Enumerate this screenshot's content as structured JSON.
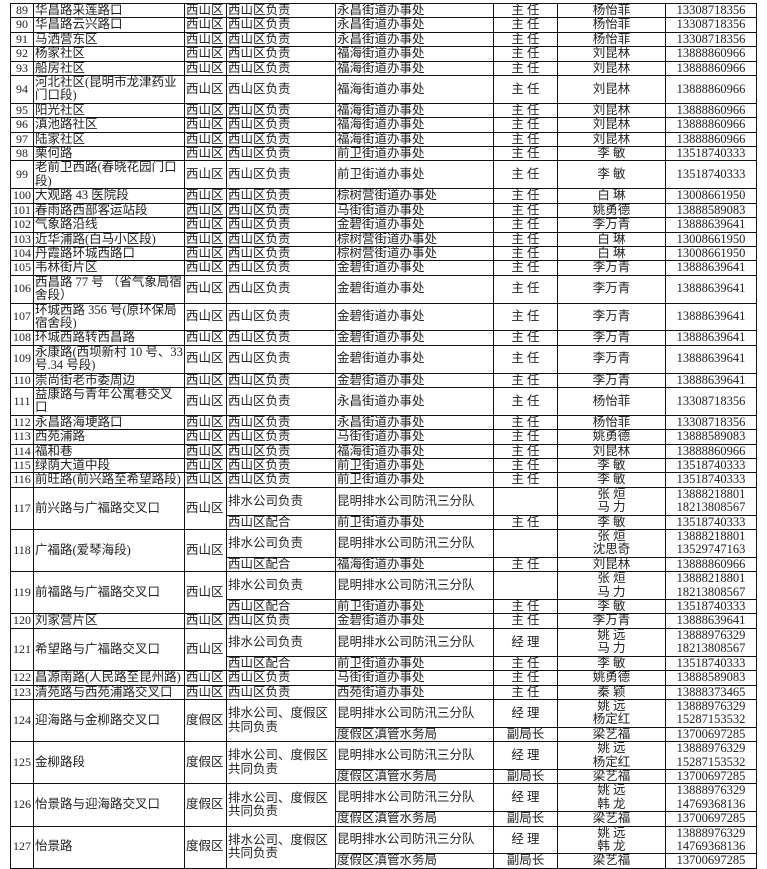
{
  "table": {
    "rows": [
      {
        "no": "89",
        "name": "华昌路采莲路口",
        "district": "西山区",
        "groups": [
          {
            "resp": "西山区负责",
            "unit": "永昌街道办事处",
            "title": "主 任",
            "people": [
              [
                "杨怡菲",
                "13308718356"
              ]
            ]
          }
        ]
      },
      {
        "no": "90",
        "name": "华昌路云兴路口",
        "district": "西山区",
        "groups": [
          {
            "resp": "西山区负责",
            "unit": "永昌街道办事处",
            "title": "主 任",
            "people": [
              [
                "杨怡菲",
                "13308718356"
              ]
            ]
          }
        ]
      },
      {
        "no": "91",
        "name": "马洒营东区",
        "district": "西山区",
        "groups": [
          {
            "resp": "西山区负责",
            "unit": "永昌街道办事处",
            "title": "主 任",
            "people": [
              [
                "杨怡菲",
                "13308718356"
              ]
            ]
          }
        ]
      },
      {
        "no": "92",
        "name": "杨家社区",
        "district": "西山区",
        "groups": [
          {
            "resp": "西山区负责",
            "unit": "福海街道办事处",
            "title": "主 任",
            "people": [
              [
                "刘昆林",
                "13888860966"
              ]
            ]
          }
        ]
      },
      {
        "no": "93",
        "name": "船房社区",
        "district": "西山区",
        "groups": [
          {
            "resp": "西山区负责",
            "unit": "福海街道办事处",
            "title": "主 任",
            "people": [
              [
                "刘昆林",
                "13888860966"
              ]
            ]
          }
        ]
      },
      {
        "no": "94",
        "name": "河北社区(昆明市龙津药业门口段)",
        "district": "西山区",
        "groups": [
          {
            "resp": "西山区负责",
            "unit": "福海街道办事处",
            "title": "主 任",
            "people": [
              [
                "刘昆林",
                "13888860966"
              ]
            ]
          }
        ]
      },
      {
        "no": "95",
        "name": "阳光社区",
        "district": "西山区",
        "groups": [
          {
            "resp": "西山区负责",
            "unit": "福海街道办事处",
            "title": "主 任",
            "people": [
              [
                "刘昆林",
                "13888860966"
              ]
            ]
          }
        ]
      },
      {
        "no": "96",
        "name": "滇池路社区",
        "district": "西山区",
        "groups": [
          {
            "resp": "西山区负责",
            "unit": "福海街道办事处",
            "title": "主 任",
            "people": [
              [
                "刘昆林",
                "13888860966"
              ]
            ]
          }
        ]
      },
      {
        "no": "97",
        "name": "陆家社区",
        "district": "西山区",
        "groups": [
          {
            "resp": "西山区负责",
            "unit": "福海街道办事处",
            "title": "主 任",
            "people": [
              [
                "刘昆林",
                "13888860966"
              ]
            ]
          }
        ]
      },
      {
        "no": "98",
        "name": "栗何路",
        "district": "西山区",
        "groups": [
          {
            "resp": "西山区负责",
            "unit": "前卫街道办事处",
            "title": "主 任",
            "people": [
              [
                "李 敏",
                "13518740333"
              ]
            ]
          }
        ]
      },
      {
        "no": "99",
        "name": "老前卫西路(春晓花园门口段)",
        "district": "西山区",
        "groups": [
          {
            "resp": "西山区负责",
            "unit": "前卫街道办事处",
            "title": "主 任",
            "people": [
              [
                "李 敏",
                "13518740333"
              ]
            ]
          }
        ]
      },
      {
        "no": "100",
        "name": "大观路 43 医院段",
        "district": "西山区",
        "groups": [
          {
            "resp": "西山区负责",
            "unit": "棕树营街道办事处",
            "title": "主 任",
            "people": [
              [
                "白 琳",
                "13008661950"
              ]
            ]
          }
        ]
      },
      {
        "no": "101",
        "name": "春雨路西部客运站段",
        "district": "西山区",
        "groups": [
          {
            "resp": "西山区负责",
            "unit": "马街街道办事处",
            "title": "主 任",
            "people": [
              [
                "姚勇德",
                "13888589083"
              ]
            ]
          }
        ]
      },
      {
        "no": "102",
        "name": "气象路沿线",
        "district": "西山区",
        "groups": [
          {
            "resp": "西山区负责",
            "unit": "金碧街道办事处",
            "title": "主 任",
            "people": [
              [
                "李万青",
                "13888639641"
              ]
            ]
          }
        ]
      },
      {
        "no": "103",
        "name": "近华浦路(白马小区段)",
        "district": "西山区",
        "groups": [
          {
            "resp": "西山区负责",
            "unit": "棕树营街道办事处",
            "title": "主 任",
            "people": [
              [
                "白 琳",
                "13008661950"
              ]
            ]
          }
        ]
      },
      {
        "no": "104",
        "name": "丹霞路环城西路口",
        "district": "西山区",
        "groups": [
          {
            "resp": "西山区负责",
            "unit": "棕树营街道办事处",
            "title": "主 任",
            "people": [
              [
                "白 琳",
                "13008661950"
              ]
            ]
          }
        ]
      },
      {
        "no": "105",
        "name": "韦林街片区",
        "district": "西山区",
        "groups": [
          {
            "resp": "西山区负责",
            "unit": "金碧街道办事处",
            "title": "主 任",
            "people": [
              [
                "李万青",
                "13888639641"
              ]
            ]
          }
        ]
      },
      {
        "no": "106",
        "name": "西昌路 77 号 （省气象局宿舍段）",
        "district": "西山区",
        "groups": [
          {
            "resp": "西山区负责",
            "unit": "金碧街道办事处",
            "title": "主 任",
            "people": [
              [
                "李万青",
                "13888639641"
              ]
            ]
          }
        ]
      },
      {
        "no": "107",
        "name": "环城西路 356 号(原环保局宿舍段)",
        "district": "西山区",
        "groups": [
          {
            "resp": "西山区负责",
            "unit": "金碧街道办事处",
            "title": "主 任",
            "people": [
              [
                "李万青",
                "13888639641"
              ]
            ]
          }
        ]
      },
      {
        "no": "108",
        "name": "环城西路转西昌路",
        "district": "西山区",
        "groups": [
          {
            "resp": "西山区负责",
            "unit": "金碧街道办事处",
            "title": "主 任",
            "people": [
              [
                "李万青",
                "13888639641"
              ]
            ]
          }
        ]
      },
      {
        "no": "109",
        "name": "永康路(西坝新村 10 号、33 号.34 号段)",
        "district": "西山区",
        "groups": [
          {
            "resp": "西山区负责",
            "unit": "金碧街道办事处",
            "title": "主 任",
            "people": [
              [
                "李万青",
                "13888639641"
              ]
            ]
          }
        ]
      },
      {
        "no": "110",
        "name": "崇尚街老市委周边",
        "district": "西山区",
        "groups": [
          {
            "resp": "西山区负责",
            "unit": "金碧街道办事处",
            "title": "主 任",
            "people": [
              [
                "李万青",
                "13888639641"
              ]
            ]
          }
        ]
      },
      {
        "no": "111",
        "name": "益康路与青年公寓巷交叉口",
        "district": "西山区",
        "groups": [
          {
            "resp": "西山区负责",
            "unit": "永昌街道办事处",
            "title": "主 任",
            "people": [
              [
                "杨怡菲",
                "13308718356"
              ]
            ]
          }
        ]
      },
      {
        "no": "112",
        "name": "永昌路海埂路口",
        "district": "西山区",
        "groups": [
          {
            "resp": "西山区负责",
            "unit": "永昌街道办事处",
            "title": "主 任",
            "people": [
              [
                "杨怡菲",
                "13308718356"
              ]
            ]
          }
        ]
      },
      {
        "no": "113",
        "name": "西苑浦路",
        "district": "西山区",
        "groups": [
          {
            "resp": "西山区负责",
            "unit": "马街街道办事处",
            "title": "主 任",
            "people": [
              [
                "姚勇德",
                "13888589083"
              ]
            ]
          }
        ]
      },
      {
        "no": "114",
        "name": "福和巷",
        "district": "西山区",
        "groups": [
          {
            "resp": "西山区负责",
            "unit": "福海街道办事处",
            "title": "主 任",
            "people": [
              [
                "刘昆林",
                "13888860966"
              ]
            ]
          }
        ]
      },
      {
        "no": "115",
        "name": "绿荫大道中段",
        "district": "西山区",
        "groups": [
          {
            "resp": "西山区负责",
            "unit": "前卫街道办事处",
            "title": "主 任",
            "people": [
              [
                "李 敏",
                "13518740333"
              ]
            ]
          }
        ]
      },
      {
        "no": "116",
        "name": "前旺路(前兴路至希望路段)",
        "district": "西山区",
        "groups": [
          {
            "resp": "西山区负责",
            "unit": "前卫街道办事处",
            "title": "主 任",
            "people": [
              [
                "李 敏",
                "13518740333"
              ]
            ]
          }
        ]
      },
      {
        "no": "117",
        "name": "前兴路与广福路交叉口",
        "district": "西山区",
        "groups": [
          {
            "resp": "排水公司负责",
            "unit": "昆明排水公司防汛三分队",
            "title": "",
            "people": [
              [
                "张 烜",
                "13888218801"
              ],
              [
                "马 力",
                "18213808567"
              ]
            ]
          },
          {
            "resp": "西山区配合",
            "unit": "前卫街道办事处",
            "title": "主 任",
            "people": [
              [
                "李 敏",
                "13518740333"
              ]
            ]
          }
        ]
      },
      {
        "no": "118",
        "name": "广福路(爱琴海段)",
        "district": "西山区",
        "groups": [
          {
            "resp": "排水公司负责",
            "unit": "昆明排水公司防汛三分队",
            "title": "",
            "people": [
              [
                "张 烜",
                "13888218801"
              ],
              [
                "沈思奇",
                "13529747163"
              ]
            ]
          },
          {
            "resp": "西山区配合",
            "unit": "福海街道办事处",
            "title": "主 任",
            "people": [
              [
                "刘昆林",
                "13888860966"
              ]
            ]
          }
        ]
      },
      {
        "no": "119",
        "name": "前福路与广福路交叉口",
        "district": "西山区",
        "groups": [
          {
            "resp": "排水公司负责",
            "unit": "昆明排水公司防汛三分队",
            "title": "",
            "people": [
              [
                "张 烜",
                "13888218801"
              ],
              [
                "马 力",
                "18213808567"
              ]
            ]
          },
          {
            "resp": "西山区配合",
            "unit": "前卫街道办事处",
            "title": "主 任",
            "people": [
              [
                "李 敏",
                "13518740333"
              ]
            ]
          }
        ]
      },
      {
        "no": "120",
        "name": "刘家营片区",
        "district": "西山区",
        "groups": [
          {
            "resp": "西山区负责",
            "unit": "金碧街道办事处",
            "title": "主 任",
            "people": [
              [
                "李万青",
                "13888639641"
              ]
            ]
          }
        ]
      },
      {
        "no": "121",
        "name": "希望路与广福路交叉口",
        "district": "西山区",
        "groups": [
          {
            "resp": "排水公司负责",
            "unit": "昆明排水公司防汛三分队",
            "title": "经 理",
            "people": [
              [
                "姚 远",
                "13888976329"
              ],
              [
                "马 力",
                "18213808567"
              ]
            ]
          },
          {
            "resp": "西山区配合",
            "unit": "前卫街道办事处",
            "title": "主 任",
            "people": [
              [
                "李 敏",
                "13518740333"
              ]
            ]
          }
        ]
      },
      {
        "no": "122",
        "name": "昌源南路(人民路至昆州路)",
        "district": "西山区",
        "groups": [
          {
            "resp": "西山区负责",
            "unit": "马街街道办事处",
            "title": "主 任",
            "people": [
              [
                "姚勇德",
                "13888589083"
              ]
            ]
          }
        ]
      },
      {
        "no": "123",
        "name": "清苑路与西苑浦路交叉口",
        "district": "西山区",
        "groups": [
          {
            "resp": "西山区负责",
            "unit": "西苑街道办事处",
            "title": "主 任",
            "people": [
              [
                "秦 颖",
                "13888373465"
              ]
            ]
          }
        ]
      },
      {
        "no": "124",
        "name": "迎海路与金柳路交叉口",
        "district": "度假区",
        "shared_resp": "排水公司、度假区共同负责",
        "groups": [
          {
            "unit": "昆明排水公司防汛三分队",
            "title": "经 理",
            "people": [
              [
                "姚 远",
                "13888976329"
              ],
              [
                "杨定红",
                "15287153532"
              ]
            ]
          },
          {
            "unit": "度假区滇管水务局",
            "title": "副局长",
            "people": [
              [
                "梁艺福",
                "13700697285"
              ]
            ]
          }
        ]
      },
      {
        "no": "125",
        "name": "金柳路段",
        "district": "度假区",
        "shared_resp": "排水公司、度假区共同负责",
        "groups": [
          {
            "unit": "昆明排水公司防汛三分队",
            "title": "经 理",
            "people": [
              [
                "姚 远",
                "13888976329"
              ],
              [
                "杨定红",
                "15287153532"
              ]
            ]
          },
          {
            "unit": "度假区滇管水务局",
            "title": "副局长",
            "people": [
              [
                "梁艺福",
                "13700697285"
              ]
            ]
          }
        ]
      },
      {
        "no": "126",
        "name": "怡景路与迎海路交叉口",
        "district": "度假区",
        "shared_resp": "排水公司、度假区共同负责",
        "groups": [
          {
            "unit": "昆明排水公司防汛三分队",
            "title": "经 理",
            "people": [
              [
                "姚 远",
                "13888976329"
              ],
              [
                "韩 龙",
                "14769368136"
              ]
            ]
          },
          {
            "unit": "度假区滇管水务局",
            "title": "副局长",
            "people": [
              [
                "梁艺福",
                "13700697285"
              ]
            ]
          }
        ]
      },
      {
        "no": "127",
        "name": "怡景路",
        "district": "度假区",
        "shared_resp": "排水公司、度假区共同负责",
        "groups": [
          {
            "unit": "昆明排水公司防汛三分队",
            "title": "经 理",
            "people": [
              [
                "姚 远",
                "13888976329"
              ],
              [
                "韩 龙",
                "14769368136"
              ]
            ]
          },
          {
            "unit": "度假区滇管水务局",
            "title": "副局长",
            "people": [
              [
                "梁艺福",
                "13700697285"
              ]
            ]
          }
        ]
      }
    ]
  }
}
